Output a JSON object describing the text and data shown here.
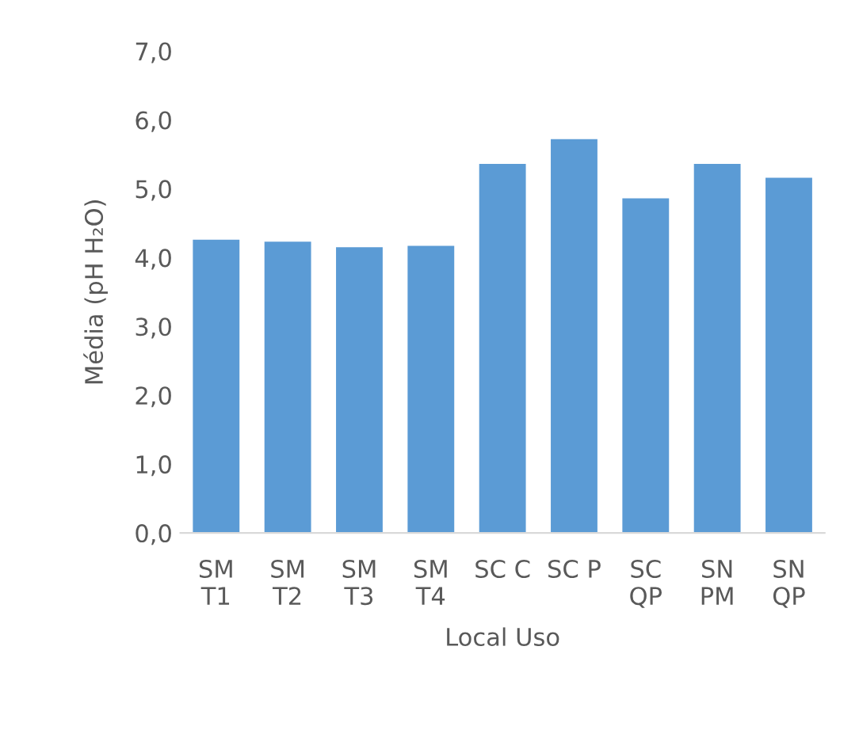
{
  "chart_data": {
    "type": "bar",
    "xlabel": "Local Uso",
    "ylabel": "Média (pH H₂O)",
    "categories": [
      "SM\nT1",
      "SM\nT2",
      "SM\nT3",
      "SM\nT4",
      "SC C",
      "SC P",
      "SC\nQP",
      "SN\nPM",
      "SN\nQP"
    ],
    "values": [
      4.27,
      4.24,
      4.16,
      4.18,
      5.37,
      5.73,
      4.87,
      5.37,
      5.17
    ],
    "color": "#5b9bd5",
    "ylim": [
      0,
      7
    ],
    "yticks": [
      {
        "value": 0,
        "label": "0,0"
      },
      {
        "value": 1,
        "label": "1,0"
      },
      {
        "value": 2,
        "label": "2,0"
      },
      {
        "value": 3,
        "label": "3,0"
      },
      {
        "value": 4,
        "label": "4,0"
      },
      {
        "value": 5,
        "label": "5,0"
      },
      {
        "value": 6,
        "label": "6,0"
      },
      {
        "value": 7,
        "label": "7,0"
      }
    ],
    "grid": false
  }
}
